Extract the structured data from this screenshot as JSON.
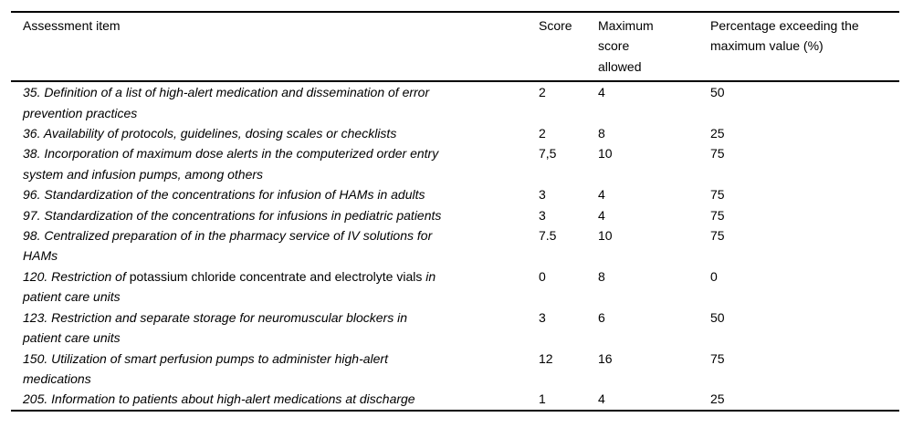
{
  "style": {
    "background": "#ffffff",
    "text_color": "#000000",
    "rule_color": "#000000"
  },
  "table": {
    "header": {
      "item": "Assessment item",
      "score": "Score",
      "max": "Maximum\nscore\nallowed",
      "pct": "Percentage exceeding the\nmaximum value (%)"
    },
    "rows": [
      {
        "item_segments": [
          {
            "text": "35. Definition of a list of high-alert medication and dissemination of error\nprevention practices",
            "italic": true
          }
        ],
        "score": "2",
        "max": "4",
        "pct": "50"
      },
      {
        "item_segments": [
          {
            "text": "36. Availability of protocols, guidelines, dosing scales or checklists",
            "italic": true
          }
        ],
        "score": "2",
        "max": "8",
        "pct": "25"
      },
      {
        "item_segments": [
          {
            "text": "38. Incorporation of maximum dose alerts in the computerized order entry\nsystem and infusion pumps, among others",
            "italic": true
          }
        ],
        "score": "7,5",
        "max": "10",
        "pct": "75"
      },
      {
        "item_segments": [
          {
            "text": "96. Standardization of the concentrations for infusion of HAMs in adults",
            "italic": true
          }
        ],
        "score": "3",
        "max": "4",
        "pct": "75"
      },
      {
        "item_segments": [
          {
            "text": "97. Standardization of the concentrations for infusions in pediatric patients",
            "italic": true
          }
        ],
        "score": "3",
        "max": "4",
        "pct": "75"
      },
      {
        "item_segments": [
          {
            "text": "98. Centralized preparation of in the pharmacy service of IV solutions for\nHAMs",
            "italic": true
          }
        ],
        "score": "7.5",
        "max": "10",
        "pct": "75"
      },
      {
        "item_segments": [
          {
            "text": "120. Restriction of ",
            "italic": true
          },
          {
            "text": "potassium chloride concentrate and electrolyte vials ",
            "italic": false
          },
          {
            "text": "in\npatient care units",
            "italic": true
          }
        ],
        "score": "0",
        "max": "8",
        "pct": "0"
      },
      {
        "item_segments": [
          {
            "text": "123. Restriction and separate storage for neuromuscular blockers in\npatient care units",
            "italic": true
          }
        ],
        "score": "3",
        "max": "6",
        "pct": "50"
      },
      {
        "item_segments": [
          {
            "text": "150. Utilization of smart perfusion pumps to administer high-alert\nmedications",
            "italic": true
          }
        ],
        "score": "12",
        "max": "16",
        "pct": "75"
      },
      {
        "item_segments": [
          {
            "text": "205. Information to patients about high-alert medications at discharge",
            "italic": true
          }
        ],
        "score": "1",
        "max": "4",
        "pct": "25"
      }
    ]
  }
}
